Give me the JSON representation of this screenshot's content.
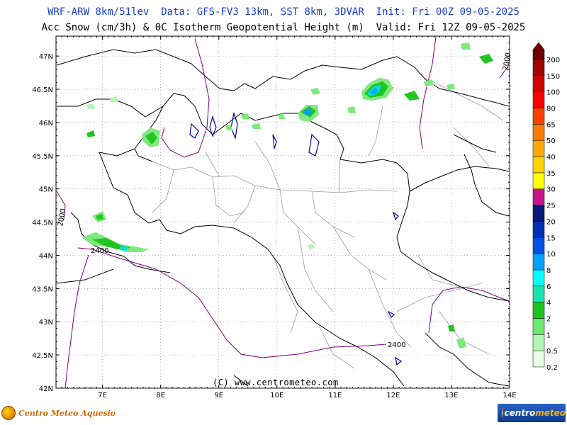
{
  "header": {
    "line1": "WRF-ARW 8km/51lev  Data: GFS-FV3 13km, SST 8km, 3DVAR  Init: Fri 00Z 09-05-2025",
    "line2": "Acc Snow (cm/3h) & 0C Isotherm Geopotential Height (m)  Valid: Fri 12Z 09-05-2025"
  },
  "map": {
    "lon_range": [
      6.2,
      14.0
    ],
    "lat_range": [
      42.0,
      47.3
    ],
    "lon_ticks": [
      "7E",
      "8E",
      "9E",
      "10E",
      "11E",
      "12E",
      "13E",
      "14E"
    ],
    "lat_ticks": [
      "42N",
      "42.5N",
      "43N",
      "43.5N",
      "44N",
      "44.5N",
      "45N",
      "45.5N",
      "46N",
      "46.5N",
      "47N"
    ],
    "isotherm_labels": [
      "2400",
      "2400",
      "2000",
      "2000"
    ],
    "copyright": "(C) www.centrometeo.com"
  },
  "legend": {
    "levels": [
      "0.2",
      "0.5",
      "1",
      "2",
      "4",
      "6",
      "8",
      "10",
      "15",
      "20",
      "25",
      "30",
      "35",
      "40",
      "50",
      "65",
      "80",
      "100",
      "150",
      "200"
    ],
    "colors": [
      "#e6ffe6",
      "#b3f5b3",
      "#6ee86e",
      "#1ec41e",
      "#15e4ae",
      "#00ffff",
      "#00a0ff",
      "#0050e6",
      "#0030b0",
      "#0a1a7a",
      "#c8148c",
      "#ffff00",
      "#ffd400",
      "#ffaa00",
      "#ff7a00",
      "#ff4000",
      "#ff0000",
      "#d40000",
      "#a00000",
      "#6a0000"
    ]
  },
  "logos": {
    "left": "Centro Meteo Aquesio",
    "right_prefix": "centro",
    "right_suffix": "meteo"
  }
}
